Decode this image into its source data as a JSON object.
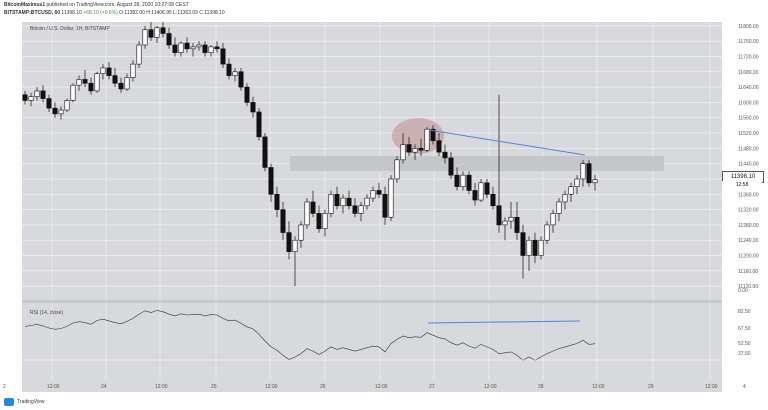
{
  "header": {
    "author": "BitcoinMaximus1",
    "published": " published on TradingView.com, August 28, 2020 10:27:08 CEST",
    "symbol": "BITSTAMP:BTCUSD, 60",
    "last": " 11398.10",
    "change": " +68.10 (+0.6%)",
    "ohlc": " O:11382.00  H:11406.95  L:11363.09  C:11398.10"
  },
  "legend_main": "Bitcoin / U.S. Dollar, 1H, BITSTAMP",
  "legend_rsi": "RSI (14, close)",
  "price_tag": "11398.10",
  "time_tag": "12:58",
  "footer": {
    "brand": "TradingView"
  },
  "colors": {
    "background": "#d8d9dd",
    "candle": "#111111",
    "trendline": "#4f86d8",
    "highlight": "#c8a8ac",
    "zone": "#c2c3c7"
  },
  "chart_data": {
    "type": "candlestick",
    "y_ticks": [
      "11800.00",
      "11760.00",
      "11720.00",
      "11680.00",
      "11640.00",
      "11600.00",
      "11560.00",
      "11520.00",
      "11480.00",
      "11440.00",
      "11400.00",
      "11360.00",
      "11320.00",
      "11280.00",
      "11240.00",
      "11200.00",
      "11160.00",
      "11120.00"
    ],
    "ylim": [
      11110,
      11810
    ],
    "rsi_ticks": [
      "0.00",
      "82.50",
      "67.50",
      "52.50",
      "37.50"
    ],
    "x_ticks": [
      "2",
      "12:00",
      "24",
      "12:00",
      "25",
      "12:00",
      "26",
      "12:00",
      "27",
      "12:00",
      "28",
      "12:00",
      "29",
      "12:00",
      "4"
    ],
    "candles": [
      [
        11620,
        11630,
        11595,
        11605
      ],
      [
        11605,
        11625,
        11590,
        11615
      ],
      [
        11615,
        11640,
        11605,
        11630
      ],
      [
        11630,
        11645,
        11600,
        11610
      ],
      [
        11610,
        11620,
        11575,
        11585
      ],
      [
        11585,
        11600,
        11560,
        11570
      ],
      [
        11570,
        11590,
        11555,
        11580
      ],
      [
        11580,
        11610,
        11575,
        11605
      ],
      [
        11605,
        11650,
        11600,
        11645
      ],
      [
        11645,
        11670,
        11630,
        11660
      ],
      [
        11660,
        11685,
        11640,
        11650
      ],
      [
        11650,
        11665,
        11620,
        11630
      ],
      [
        11630,
        11680,
        11625,
        11675
      ],
      [
        11675,
        11700,
        11660,
        11690
      ],
      [
        11690,
        11705,
        11660,
        11670
      ],
      [
        11670,
        11690,
        11640,
        11650
      ],
      [
        11650,
        11665,
        11625,
        11635
      ],
      [
        11635,
        11675,
        11630,
        11665
      ],
      [
        11665,
        11710,
        11655,
        11700
      ],
      [
        11700,
        11760,
        11690,
        11750
      ],
      [
        11750,
        11800,
        11740,
        11790
      ],
      [
        11790,
        11810,
        11760,
        11770
      ],
      [
        11770,
        11800,
        11755,
        11795
      ],
      [
        11795,
        11810,
        11770,
        11780
      ],
      [
        11780,
        11795,
        11740,
        11750
      ],
      [
        11750,
        11770,
        11720,
        11730
      ],
      [
        11730,
        11760,
        11720,
        11755
      ],
      [
        11755,
        11770,
        11730,
        11740
      ],
      [
        11740,
        11755,
        11720,
        11745
      ],
      [
        11745,
        11760,
        11735,
        11750
      ],
      [
        11750,
        11760,
        11720,
        11730
      ],
      [
        11730,
        11750,
        11720,
        11745
      ],
      [
        11745,
        11760,
        11730,
        11740
      ],
      [
        11740,
        11755,
        11690,
        11700
      ],
      [
        11700,
        11715,
        11660,
        11670
      ],
      [
        11670,
        11690,
        11655,
        11680
      ],
      [
        11680,
        11690,
        11630,
        11640
      ],
      [
        11640,
        11650,
        11590,
        11600
      ],
      [
        11600,
        11615,
        11560,
        11575
      ],
      [
        11575,
        11585,
        11500,
        11510
      ],
      [
        11510,
        11520,
        11420,
        11430
      ],
      [
        11430,
        11440,
        11340,
        11360
      ],
      [
        11360,
        11380,
        11300,
        11320
      ],
      [
        11320,
        11340,
        11240,
        11260
      ],
      [
        11260,
        11290,
        11190,
        11210
      ],
      [
        11210,
        11250,
        11120,
        11240
      ],
      [
        11240,
        11290,
        11220,
        11280
      ],
      [
        11280,
        11350,
        11270,
        11340
      ],
      [
        11340,
        11370,
        11300,
        11310
      ],
      [
        11310,
        11330,
        11260,
        11270
      ],
      [
        11270,
        11320,
        11250,
        11310
      ],
      [
        11310,
        11370,
        11300,
        11360
      ],
      [
        11360,
        11380,
        11320,
        11330
      ],
      [
        11330,
        11360,
        11310,
        11350
      ],
      [
        11350,
        11370,
        11320,
        11330
      ],
      [
        11330,
        11350,
        11300,
        11310
      ],
      [
        11310,
        11340,
        11290,
        11330
      ],
      [
        11330,
        11360,
        11320,
        11350
      ],
      [
        11350,
        11380,
        11340,
        11370
      ],
      [
        11370,
        11390,
        11350,
        11360
      ],
      [
        11360,
        11380,
        11280,
        11300
      ],
      [
        11300,
        11410,
        11290,
        11400
      ],
      [
        11400,
        11460,
        11390,
        11450
      ],
      [
        11450,
        11520,
        11440,
        11490
      ],
      [
        11490,
        11510,
        11460,
        11470
      ],
      [
        11470,
        11490,
        11450,
        11480
      ],
      [
        11480,
        11505,
        11460,
        11475
      ],
      [
        11475,
        11535,
        11470,
        11530
      ],
      [
        11530,
        11540,
        11490,
        11500
      ],
      [
        11500,
        11520,
        11460,
        11470
      ],
      [
        11470,
        11490,
        11440,
        11455
      ],
      [
        11455,
        11470,
        11400,
        11410
      ],
      [
        11410,
        11430,
        11370,
        11380
      ],
      [
        11380,
        11420,
        11370,
        11410
      ],
      [
        11410,
        11420,
        11360,
        11370
      ],
      [
        11370,
        11390,
        11330,
        11345
      ],
      [
        11345,
        11400,
        11340,
        11390
      ],
      [
        11390,
        11400,
        11350,
        11360
      ],
      [
        11360,
        11380,
        11320,
        11330
      ],
      [
        11330,
        11620,
        11260,
        11280
      ],
      [
        11280,
        11300,
        11240,
        11290
      ],
      [
        11290,
        11340,
        11270,
        11300
      ],
      [
        11300,
        11340,
        11240,
        11260
      ],
      [
        11260,
        11280,
        11140,
        11200
      ],
      [
        11200,
        11250,
        11160,
        11240
      ],
      [
        11240,
        11260,
        11180,
        11200
      ],
      [
        11200,
        11250,
        11190,
        11240
      ],
      [
        11240,
        11290,
        11230,
        11280
      ],
      [
        11280,
        11320,
        11260,
        11310
      ],
      [
        11310,
        11350,
        11290,
        11340
      ],
      [
        11340,
        11370,
        11320,
        11360
      ],
      [
        11360,
        11390,
        11340,
        11380
      ],
      [
        11380,
        11410,
        11360,
        11400
      ],
      [
        11400,
        11450,
        11380,
        11440
      ],
      [
        11440,
        11450,
        11380,
        11390
      ],
      [
        11390,
        11410,
        11370,
        11398
      ]
    ],
    "trendline_price": [
      [
        11530,
        11445
      ]
    ],
    "trendline_rsi": [
      [
        70,
        72
      ]
    ]
  }
}
